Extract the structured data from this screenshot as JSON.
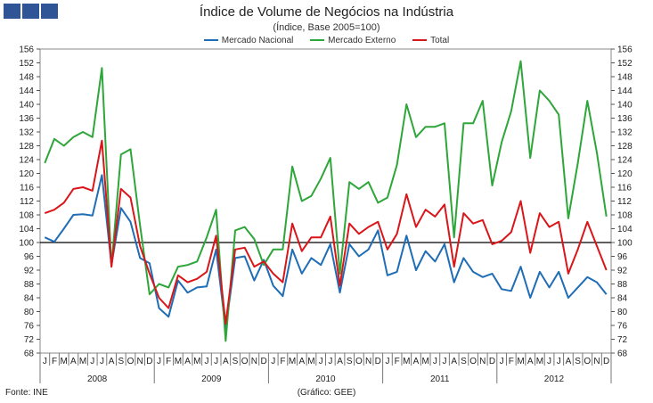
{
  "header": {
    "title": "Índice de Volume de Negócios na Indústria",
    "subtitle": "(Índice, Base 2005=100)"
  },
  "footer": {
    "source": "Fonte: INE",
    "credit": "(Gráfico: GEE)"
  },
  "colors": {
    "logo": "#2f5597",
    "series": [
      "#1f6db5",
      "#2ea63a",
      "#d9161a"
    ],
    "reference_line": "#000000",
    "axis": "#555555"
  },
  "chart_data": {
    "type": "line",
    "title": "Índice de Volume de Negócios na Indústria",
    "subtitle": "(Índice, Base 2005=100)",
    "ylim": [
      68,
      156
    ],
    "y_ticks": [
      68,
      72,
      76,
      80,
      84,
      88,
      92,
      96,
      100,
      104,
      108,
      112,
      116,
      120,
      124,
      128,
      132,
      136,
      140,
      144,
      148,
      152,
      156
    ],
    "dual_y_axis": true,
    "reference_line": 100,
    "grid": false,
    "legend_position": "top",
    "month_labels": [
      "J",
      "F",
      "M",
      "A",
      "M",
      "J",
      "J",
      "A",
      "S",
      "O",
      "N",
      "D"
    ],
    "years": [
      "2008",
      "2009",
      "2010",
      "2011",
      "2012"
    ],
    "series": [
      {
        "name": "Mercado Nacional",
        "values": [
          101.5,
          100.2,
          104.0,
          108.0,
          108.2,
          107.8,
          119.5,
          93.5,
          110.0,
          106.0,
          95.5,
          94.0,
          81.0,
          78.5,
          89.0,
          85.5,
          87.0,
          87.3,
          98.0,
          75.0,
          95.5,
          96.0,
          89.0,
          95.0,
          87.5,
          84.5,
          98.0,
          91.0,
          95.5,
          93.5,
          99.5,
          85.5,
          99.5,
          96.0,
          98.0,
          103.5,
          90.5,
          91.5,
          102.0,
          92.0,
          97.5,
          94.5,
          99.5,
          88.5,
          95.5,
          91.5,
          90.0,
          91.0,
          86.5,
          86.0,
          93.0,
          84.0,
          91.5,
          87.0,
          91.5,
          84.0,
          87.0,
          90.0,
          88.5,
          85.0
        ]
      },
      {
        "name": "Mercado Externo",
        "values": [
          123.0,
          130.0,
          128.0,
          130.5,
          132.0,
          130.5,
          150.5,
          93.0,
          125.5,
          127.0,
          105.0,
          85.0,
          88.0,
          87.0,
          93.0,
          93.5,
          94.5,
          101.5,
          109.5,
          71.5,
          103.5,
          104.5,
          101.0,
          93.5,
          98.0,
          98.0,
          122.0,
          112.0,
          113.5,
          118.5,
          124.5,
          91.0,
          117.5,
          115.5,
          117.5,
          111.5,
          113.0,
          122.5,
          140.0,
          130.5,
          133.5,
          133.5,
          134.5,
          101.5,
          134.5,
          134.5,
          141.0,
          116.5,
          129.0,
          138.0,
          152.5,
          124.5,
          144.0,
          141.0,
          137.0,
          107.0,
          123.0,
          141.0,
          126.0,
          107.5
        ]
      },
      {
        "name": "Total",
        "values": [
          108.5,
          109.5,
          111.5,
          115.5,
          116.0,
          115.0,
          129.5,
          93.0,
          115.5,
          113.0,
          99.0,
          91.0,
          84.0,
          81.0,
          90.5,
          88.5,
          89.5,
          91.5,
          102.0,
          76.5,
          98.0,
          98.5,
          93.0,
          94.5,
          91.0,
          88.5,
          105.5,
          97.5,
          101.5,
          101.5,
          107.5,
          87.5,
          105.5,
          102.5,
          104.5,
          106.0,
          98.0,
          102.5,
          114.0,
          104.5,
          109.5,
          107.5,
          111.0,
          93.0,
          108.5,
          105.5,
          106.5,
          99.5,
          100.5,
          103.0,
          112.0,
          97.0,
          108.5,
          104.5,
          106.0,
          91.0,
          98.0,
          106.0,
          99.0,
          92.0
        ]
      }
    ]
  }
}
